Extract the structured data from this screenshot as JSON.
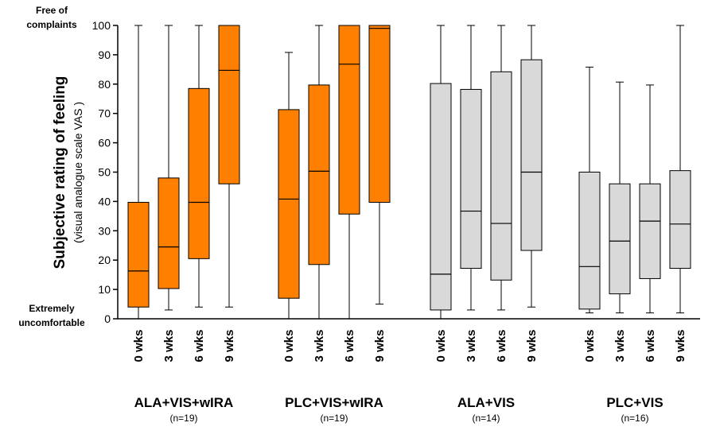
{
  "chart_data": {
    "type": "boxplot",
    "ylabel": "Subjective rating of feeling",
    "ylabel_sub": "(visual analogue scale VAS )",
    "ylim": [
      0,
      100
    ],
    "yticks": [
      "0",
      "10",
      "20",
      "30",
      "40",
      "50",
      "60",
      "70",
      "80",
      "90",
      "100"
    ],
    "anchor_top": [
      "Free of",
      "complaints"
    ],
    "anchor_bottom": [
      "Extremely",
      "uncomfortable"
    ],
    "colors": {
      "orange": "#ff7f00",
      "grey": "#d9d9d9",
      "stroke": "#000000"
    },
    "groups": [
      {
        "name": "ALA+VIS+wIRA",
        "n": "(n=19)",
        "color": "orange",
        "boxes": [
          {
            "label": "0 wks",
            "min": 0,
            "q1": 4,
            "median": 16.3,
            "q3": 39.7,
            "max": 100
          },
          {
            "label": "3 wks",
            "min": 3,
            "q1": 10.3,
            "median": 24.5,
            "q3": 48,
            "max": 100
          },
          {
            "label": "6 wks",
            "min": 4,
            "q1": 20.5,
            "median": 39.7,
            "q3": 78.5,
            "max": 100
          },
          {
            "label": "9 wks",
            "min": 4,
            "q1": 46,
            "median": 84.7,
            "q3": 100,
            "max": 100
          }
        ]
      },
      {
        "name": "PLC+VIS+wIRA",
        "n": "(n=19)",
        "color": "orange",
        "boxes": [
          {
            "label": "0 wks",
            "min": 0,
            "q1": 7,
            "median": 40.8,
            "q3": 71.3,
            "max": 90.8
          },
          {
            "label": "3 wks",
            "min": 0,
            "q1": 18.5,
            "median": 50.3,
            "q3": 79.7,
            "max": 100
          },
          {
            "label": "6 wks",
            "min": 0,
            "q1": 35.7,
            "median": 86.8,
            "q3": 100,
            "max": 100
          },
          {
            "label": "9 wks",
            "min": 5,
            "q1": 39.7,
            "median": 99,
            "q3": 100,
            "max": 100
          }
        ]
      },
      {
        "name": "ALA+VIS",
        "n": "(n=14)",
        "color": "grey",
        "boxes": [
          {
            "label": "0 wks",
            "min": 0,
            "q1": 3,
            "median": 15.2,
            "q3": 80.2,
            "max": 100
          },
          {
            "label": "3 wks",
            "min": 3,
            "q1": 17.2,
            "median": 36.7,
            "q3": 78.2,
            "max": 100
          },
          {
            "label": "6 wks",
            "min": 3,
            "q1": 13.2,
            "median": 32.5,
            "q3": 84.2,
            "max": 100
          },
          {
            "label": "9 wks",
            "min": 4,
            "q1": 23.3,
            "median": 50,
            "q3": 88.3,
            "max": 100
          }
        ]
      },
      {
        "name": "PLC+VIS",
        "n": "(n=16)",
        "color": "grey",
        "boxes": [
          {
            "label": "0 wks",
            "min": 2,
            "q1": 3.3,
            "median": 17.8,
            "q3": 50,
            "max": 85.8
          },
          {
            "label": "3 wks",
            "min": 2,
            "q1": 8.5,
            "median": 26.5,
            "q3": 46,
            "max": 80.7
          },
          {
            "label": "6 wks",
            "min": 2,
            "q1": 13.7,
            "median": 33.3,
            "q3": 46,
            "max": 79.7
          },
          {
            "label": "9 wks",
            "min": 2,
            "q1": 17.2,
            "median": 32.3,
            "q3": 50.5,
            "max": 100
          }
        ]
      }
    ]
  }
}
